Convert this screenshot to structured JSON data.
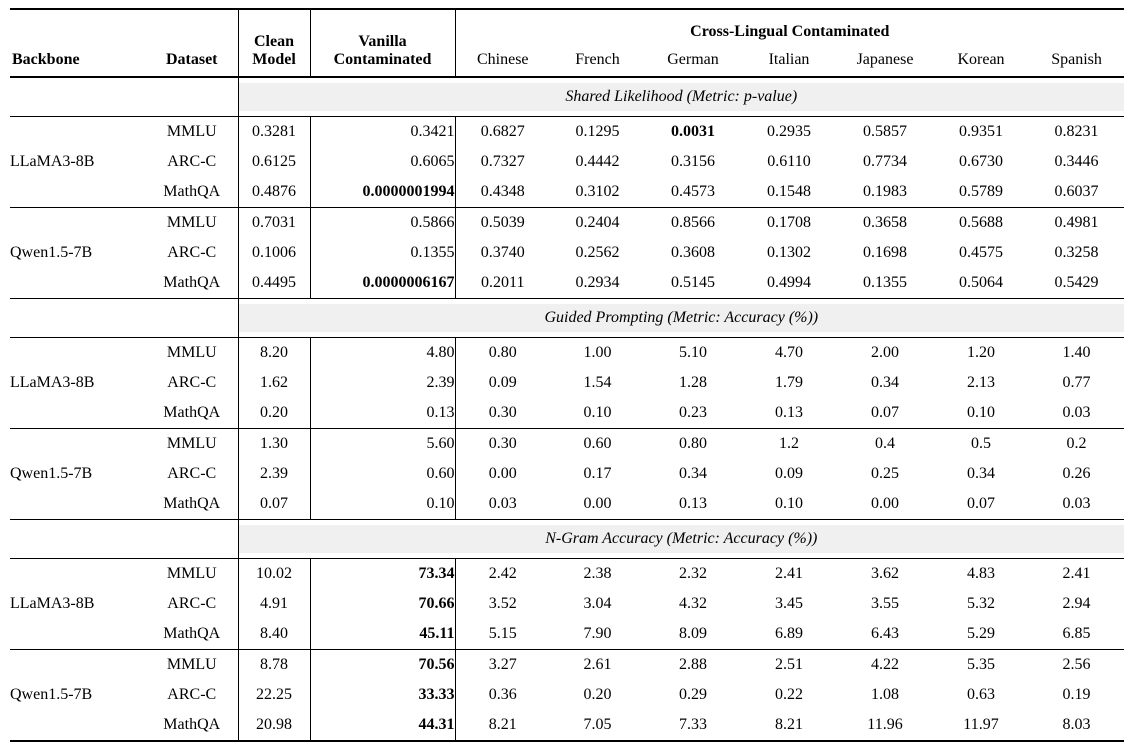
{
  "table": {
    "header": {
      "backbone": "Backbone",
      "dataset": "Dataset",
      "clean_model": "Clean Model",
      "vanilla_contaminated": "Vanilla Contaminated",
      "cross_lingual": "Cross-Lingual Contaminated",
      "languages": [
        "Chinese",
        "French",
        "German",
        "Italian",
        "Japanese",
        "Korean",
        "Spanish"
      ]
    },
    "column_keys": [
      "clean",
      "vanilla",
      "chinese",
      "french",
      "german",
      "italian",
      "japanese",
      "korean",
      "spanish"
    ],
    "colors": {
      "band_bg": "#f0f0f0",
      "rule": "#000000",
      "text": "#000000"
    },
    "sections": [
      {
        "title": "Shared Likelihood (Metric: p-value)",
        "groups": [
          {
            "backbone": "LLaMA3-8B",
            "rows": [
              {
                "dataset": "MMLU",
                "values": [
                  "0.3281",
                  "0.3421",
                  "0.6827",
                  "0.1295",
                  "0.0031",
                  "0.2935",
                  "0.5857",
                  "0.9351",
                  "0.8231"
                ],
                "bold": [
                  4
                ]
              },
              {
                "dataset": "ARC-C",
                "values": [
                  "0.6125",
                  "0.6065",
                  "0.7327",
                  "0.4442",
                  "0.3156",
                  "0.6110",
                  "0.7734",
                  "0.6730",
                  "0.3446"
                ],
                "bold": []
              },
              {
                "dataset": "MathQA",
                "values": [
                  "0.4876",
                  "0.0000001994",
                  "0.4348",
                  "0.3102",
                  "0.4573",
                  "0.1548",
                  "0.1983",
                  "0.5789",
                  "0.6037"
                ],
                "bold": [
                  1
                ]
              }
            ]
          },
          {
            "backbone": "Qwen1.5-7B",
            "rows": [
              {
                "dataset": "MMLU",
                "values": [
                  "0.7031",
                  "0.5866",
                  "0.5039",
                  "0.2404",
                  "0.8566",
                  "0.1708",
                  "0.3658",
                  "0.5688",
                  "0.4981"
                ],
                "bold": []
              },
              {
                "dataset": "ARC-C",
                "values": [
                  "0.1006",
                  "0.1355",
                  "0.3740",
                  "0.2562",
                  "0.3608",
                  "0.1302",
                  "0.1698",
                  "0.4575",
                  "0.3258"
                ],
                "bold": []
              },
              {
                "dataset": "MathQA",
                "values": [
                  "0.4495",
                  "0.0000006167",
                  "0.2011",
                  "0.2934",
                  "0.5145",
                  "0.4994",
                  "0.1355",
                  "0.5064",
                  "0.5429"
                ],
                "bold": [
                  1
                ]
              }
            ]
          }
        ]
      },
      {
        "title": "Guided Prompting (Metric: Accuracy (%))",
        "groups": [
          {
            "backbone": "LLaMA3-8B",
            "rows": [
              {
                "dataset": "MMLU",
                "values": [
                  "8.20",
                  "4.80",
                  "0.80",
                  "1.00",
                  "5.10",
                  "4.70",
                  "2.00",
                  "1.20",
                  "1.40"
                ],
                "bold": []
              },
              {
                "dataset": "ARC-C",
                "values": [
                  "1.62",
                  "2.39",
                  "0.09",
                  "1.54",
                  "1.28",
                  "1.79",
                  "0.34",
                  "2.13",
                  "0.77"
                ],
                "bold": []
              },
              {
                "dataset": "MathQA",
                "values": [
                  "0.20",
                  "0.13",
                  "0.30",
                  "0.10",
                  "0.23",
                  "0.13",
                  "0.07",
                  "0.10",
                  "0.03"
                ],
                "bold": []
              }
            ]
          },
          {
            "backbone": "Qwen1.5-7B",
            "rows": [
              {
                "dataset": "MMLU",
                "values": [
                  "1.30",
                  "5.60",
                  "0.30",
                  "0.60",
                  "0.80",
                  "1.2",
                  "0.4",
                  "0.5",
                  "0.2"
                ],
                "bold": []
              },
              {
                "dataset": "ARC-C",
                "values": [
                  "2.39",
                  "0.60",
                  "0.00",
                  "0.17",
                  "0.34",
                  "0.09",
                  "0.25",
                  "0.34",
                  "0.26"
                ],
                "bold": []
              },
              {
                "dataset": "MathQA",
                "values": [
                  "0.07",
                  "0.10",
                  "0.03",
                  "0.00",
                  "0.13",
                  "0.10",
                  "0.00",
                  "0.07",
                  "0.03"
                ],
                "bold": []
              }
            ]
          }
        ]
      },
      {
        "title": "N-Gram Accuracy (Metric: Accuracy (%))",
        "groups": [
          {
            "backbone": "LLaMA3-8B",
            "rows": [
              {
                "dataset": "MMLU",
                "values": [
                  "10.02",
                  "73.34",
                  "2.42",
                  "2.38",
                  "2.32",
                  "2.41",
                  "3.62",
                  "4.83",
                  "2.41"
                ],
                "bold": [
                  1
                ]
              },
              {
                "dataset": "ARC-C",
                "values": [
                  "4.91",
                  "70.66",
                  "3.52",
                  "3.04",
                  "4.32",
                  "3.45",
                  "3.55",
                  "5.32",
                  "2.94"
                ],
                "bold": [
                  1
                ]
              },
              {
                "dataset": "MathQA",
                "values": [
                  "8.40",
                  "45.11",
                  "5.15",
                  "7.90",
                  "8.09",
                  "6.89",
                  "6.43",
                  "5.29",
                  "6.85"
                ],
                "bold": [
                  1
                ]
              }
            ]
          },
          {
            "backbone": "Qwen1.5-7B",
            "rows": [
              {
                "dataset": "MMLU",
                "values": [
                  "8.78",
                  "70.56",
                  "3.27",
                  "2.61",
                  "2.88",
                  "2.51",
                  "4.22",
                  "5.35",
                  "2.56"
                ],
                "bold": [
                  1
                ]
              },
              {
                "dataset": "ARC-C",
                "values": [
                  "22.25",
                  "33.33",
                  "0.36",
                  "0.20",
                  "0.29",
                  "0.22",
                  "1.08",
                  "0.63",
                  "0.19"
                ],
                "bold": [
                  1
                ]
              },
              {
                "dataset": "MathQA",
                "values": [
                  "20.98",
                  "44.31",
                  "8.21",
                  "7.05",
                  "7.33",
                  "8.21",
                  "11.96",
                  "11.97",
                  "8.03"
                ],
                "bold": [
                  1
                ]
              }
            ]
          }
        ]
      }
    ]
  }
}
